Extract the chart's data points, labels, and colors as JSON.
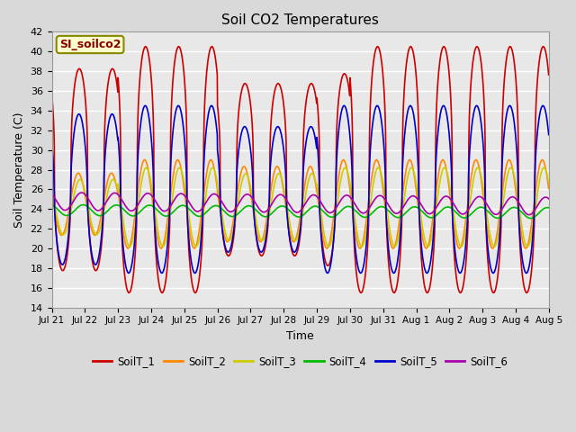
{
  "title": "Soil CO2 Temperatures",
  "xlabel": "Time",
  "ylabel": "Soil Temperature (C)",
  "ylim": [
    14,
    42
  ],
  "yticks": [
    14,
    16,
    18,
    20,
    22,
    24,
    26,
    28,
    30,
    32,
    34,
    36,
    38,
    40,
    42
  ],
  "series": {
    "SoilT_1": {
      "color": "#cc0000",
      "lw": 1.2
    },
    "SoilT_2": {
      "color": "#ff8800",
      "lw": 1.2
    },
    "SoilT_3": {
      "color": "#cccc00",
      "lw": 1.2
    },
    "SoilT_4": {
      "color": "#00bb00",
      "lw": 1.2
    },
    "SoilT_5": {
      "color": "#0000cc",
      "lw": 1.2
    },
    "SoilT_6": {
      "color": "#aa00aa",
      "lw": 1.2
    }
  },
  "legend_label": "SI_soilco2",
  "legend_bg": "#ffffcc",
  "legend_edge": "#888800",
  "x_tick_labels": [
    "Jul 21",
    "Jul 22",
    "Jul 23",
    "Jul 24",
    "Jul 25",
    "Jul 26",
    "Jul 27",
    "Jul 28",
    "Jul 29",
    "Jul 30",
    "Jul 31",
    "Aug 1",
    "Aug 2",
    "Aug 3",
    "Aug 4",
    "Aug 5"
  ],
  "fig_bg": "#d9d9d9",
  "plot_bg": "#e8e8e8",
  "grid_color": "#ffffff",
  "n_days": 15,
  "pts_per_day": 144,
  "figsize": [
    6.4,
    4.8
  ],
  "dpi": 100
}
